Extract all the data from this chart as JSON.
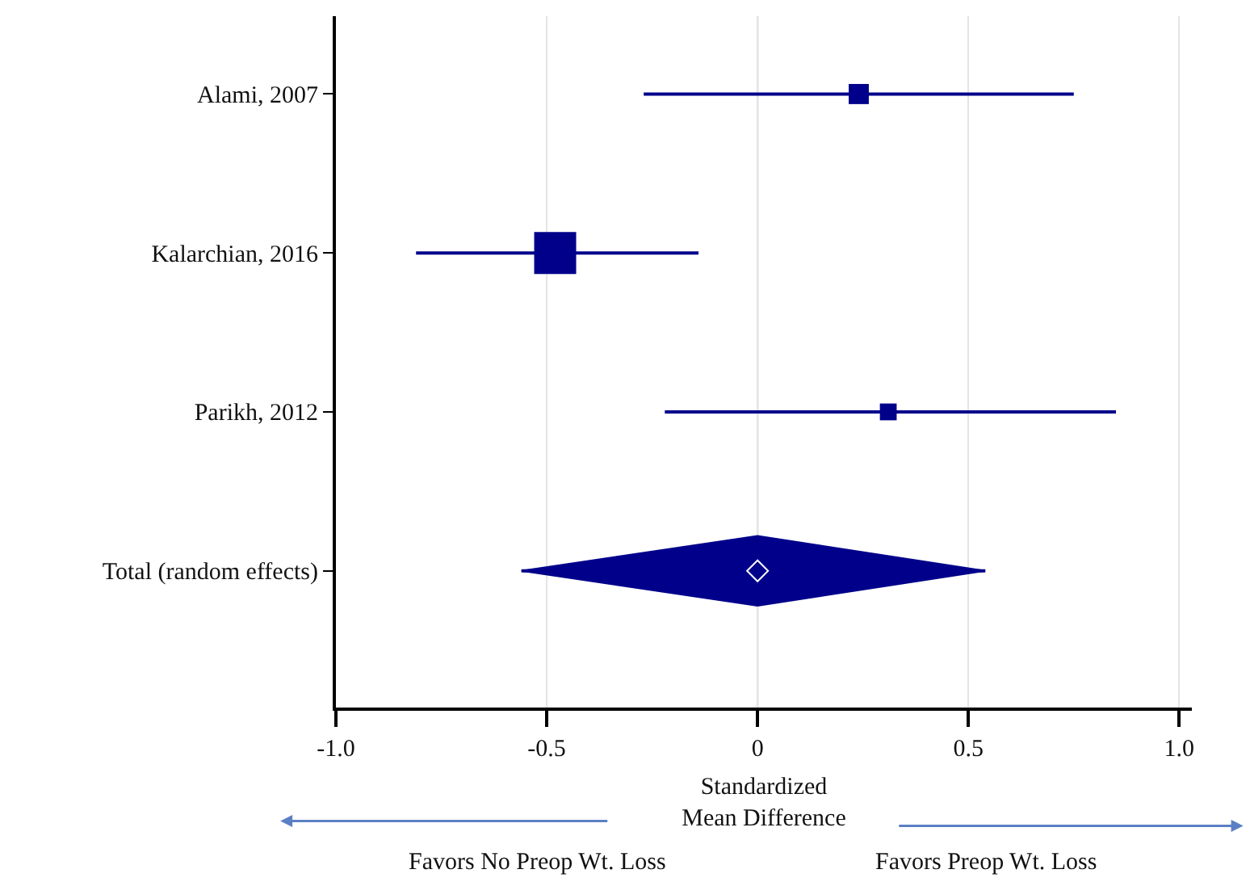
{
  "chart_data": {
    "type": "scatter",
    "orientation": "horizontal",
    "categories": [
      "Alami, 2007",
      "Kalarchian, 2016",
      "Parikh, 2012",
      "Total (random effects)"
    ],
    "series": [
      {
        "type": "bubble",
        "marker": "square",
        "color": "#00008b",
        "values": [
          0.24,
          -0.48,
          0.31,
          null
        ],
        "sizes": [
          0.23,
          1,
          0.16,
          null
        ],
        "errors": [
          [
            -0.27,
            0.75
          ],
          [
            -0.81,
            -0.14
          ],
          [
            -0.22,
            0.85
          ],
          null
        ]
      },
      {
        "marker": "diamond",
        "color": "#00008b",
        "values": [
          null,
          null,
          null,
          0
        ],
        "errors": [
          null,
          null,
          null,
          [
            -0.56,
            0.54
          ]
        ]
      }
    ],
    "xlim": [
      -1.0,
      1.03
    ],
    "xticks": [
      {
        "value": -1,
        "label": "-1.0"
      },
      -0.5,
      0,
      0.5,
      {
        "value": 1,
        "label": "1.0"
      }
    ],
    "xlabel": "Standardized\nMean Difference",
    "annotations": [
      "Favors No Preop Wt. Loss",
      "Favors Preop Wt. Loss"
    ],
    "ref_lines": [
      {
        "axis": "x",
        "value": 0,
        "color": "#6a9fd8"
      }
    ],
    "grid": "x"
  }
}
